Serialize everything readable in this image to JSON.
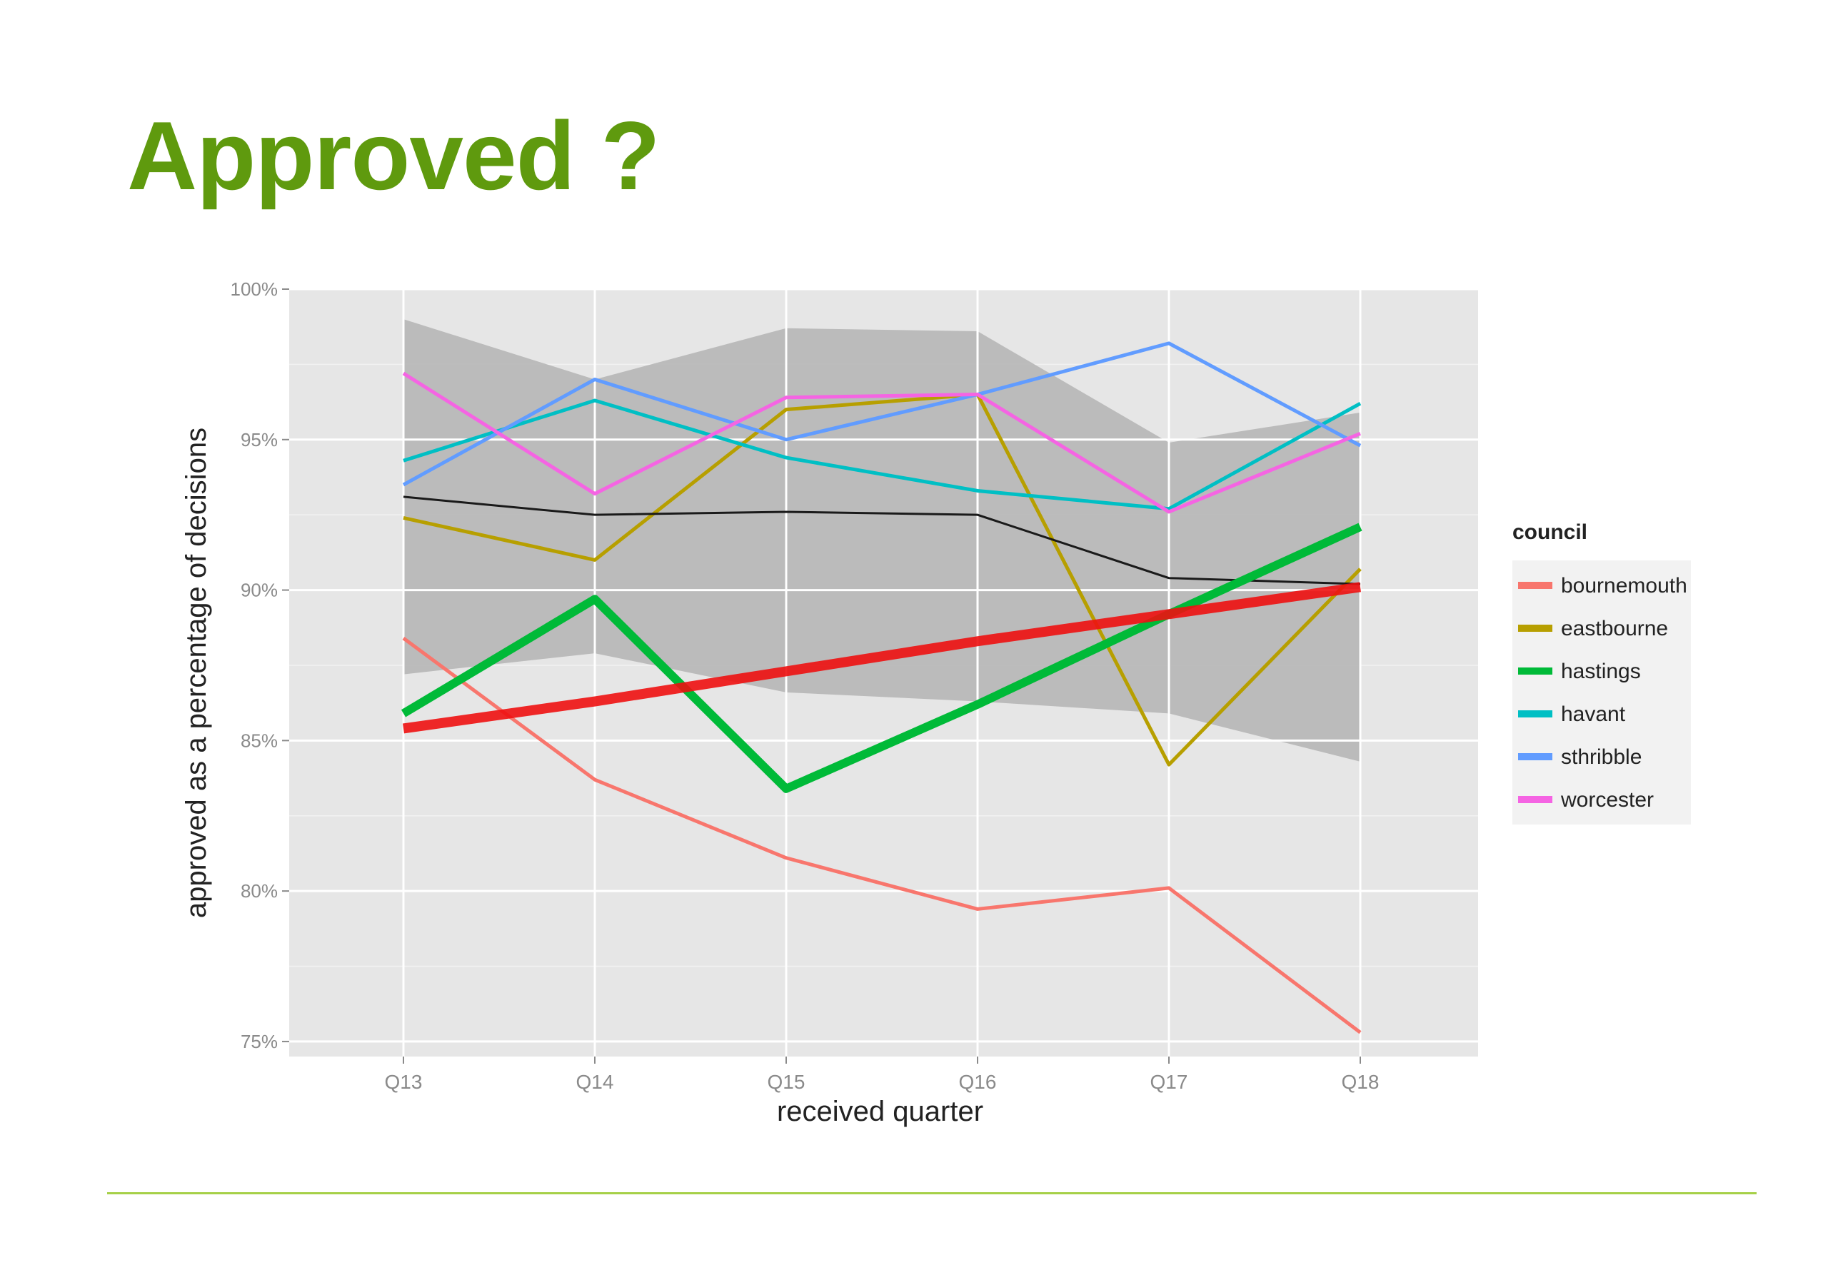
{
  "slide": {
    "title": "Approved ?",
    "title_color": "#5f9a0e",
    "footer_rule_color": "#a6d048"
  },
  "chart_data": {
    "type": "line",
    "x": [
      "Q13",
      "Q14",
      "Q15",
      "Q16",
      "Q17",
      "Q18"
    ],
    "xlabel": "received quarter",
    "ylabel": "approved as a percentage of decisions",
    "ylim": [
      74.5,
      100
    ],
    "yticks": [
      75,
      80,
      85,
      90,
      95,
      100
    ],
    "ytick_labels": [
      "75%",
      "80%",
      "85%",
      "90%",
      "95%",
      "100%"
    ],
    "grid": true,
    "panel_background": "#e6e6e6",
    "legend": {
      "title": "council",
      "position": "right"
    },
    "series": [
      {
        "name": "bournemouth",
        "color": "#f8766d",
        "values": [
          88.4,
          83.7,
          81.1,
          79.4,
          80.1,
          75.3
        ]
      },
      {
        "name": "eastbourne",
        "color": "#b79f00",
        "values": [
          92.4,
          91.0,
          96.0,
          96.5,
          84.2,
          90.7
        ]
      },
      {
        "name": "hastings",
        "color": "#00ba38",
        "values": [
          85.9,
          89.7,
          83.4,
          86.2,
          89.2,
          92.1
        ]
      },
      {
        "name": "havant",
        "color": "#00bfc4",
        "values": [
          94.3,
          96.3,
          94.4,
          93.3,
          92.7,
          96.2
        ]
      },
      {
        "name": "sthribble",
        "color": "#619cff",
        "values": [
          93.5,
          97.0,
          95.0,
          96.5,
          98.2,
          94.8
        ]
      },
      {
        "name": "worcester",
        "color": "#f564e3",
        "values": [
          97.2,
          93.2,
          96.4,
          96.5,
          92.6,
          95.2
        ]
      }
    ],
    "mean_line": {
      "color": "#1a1a1a",
      "values": [
        93.1,
        92.5,
        92.6,
        92.5,
        90.4,
        90.2
      ]
    },
    "trend_line": {
      "color": "#ee1111",
      "values": [
        85.4,
        86.3,
        87.3,
        88.3,
        89.2,
        90.1
      ]
    },
    "confidence_band": {
      "color": "#b3b3b3",
      "upper": [
        99.0,
        97.0,
        98.7,
        98.6,
        94.9,
        95.9
      ],
      "lower": [
        87.2,
        87.9,
        86.6,
        86.3,
        85.9,
        84.3
      ]
    }
  }
}
